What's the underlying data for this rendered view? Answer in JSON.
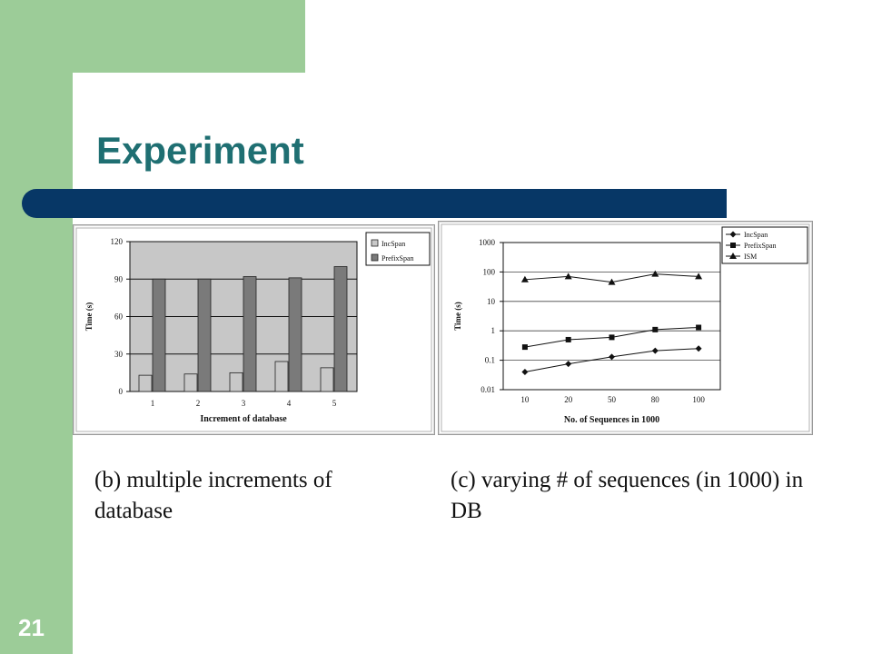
{
  "slide": {
    "title": "Experiment",
    "number": "21",
    "colors": {
      "accent_green": "#9ccc98",
      "title_teal": "#1f6f72",
      "bar_navy": "#073766"
    }
  },
  "captions": {
    "b": "(b) multiple increments of database",
    "c": "(c) varying # of sequences (in 1000) in DB"
  },
  "chart_data": [
    {
      "type": "bar",
      "title": "",
      "xlabel": "Increment of database",
      "ylabel": "Time (s)",
      "categories": [
        "1",
        "2",
        "3",
        "4",
        "5"
      ],
      "ylim": [
        0,
        120
      ],
      "yticks": [
        0,
        30,
        60,
        90,
        120
      ],
      "grid": true,
      "legend": "top-right",
      "series": [
        {
          "name": "IncSpan",
          "color": "#c8c8c8",
          "values": [
            13,
            14,
            15,
            24,
            19
          ]
        },
        {
          "name": "PrefixSpan",
          "color": "#7a7a7a",
          "values": [
            90,
            90,
            92,
            91,
            100
          ]
        }
      ]
    },
    {
      "type": "line",
      "title": "",
      "xlabel": "No. of Sequences in 1000",
      "ylabel": "Time (s)",
      "categories": [
        "10",
        "20",
        "50",
        "80",
        "100"
      ],
      "yscale": "log",
      "ylim": [
        0.01,
        1000
      ],
      "yticks": [
        "0.01",
        "0.1",
        "1",
        "10",
        "100",
        "1000"
      ],
      "grid": true,
      "legend": "right",
      "series": [
        {
          "name": "IncSpan",
          "marker": "diamond",
          "values": [
            0.04,
            0.075,
            0.13,
            0.21,
            0.25
          ]
        },
        {
          "name": "PrefixSpan",
          "marker": "square",
          "values": [
            0.28,
            0.5,
            0.6,
            1.1,
            1.3
          ]
        },
        {
          "name": "ISM",
          "marker": "triangle",
          "values": [
            55,
            70,
            45,
            85,
            70
          ]
        }
      ]
    }
  ]
}
